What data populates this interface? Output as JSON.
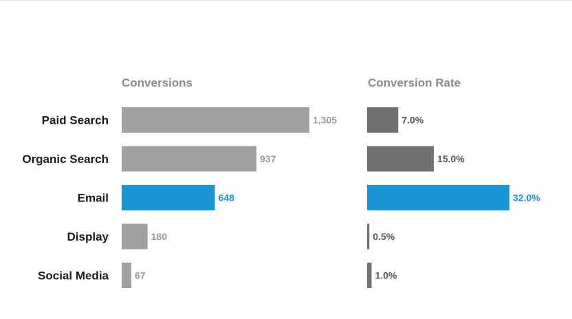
{
  "chart_data": {
    "type": "bar",
    "orientation": "horizontal",
    "categories": [
      "Paid Search",
      "Organic Search",
      "Email",
      "Display",
      "Social Media"
    ],
    "highlight_category": "Email",
    "colors": {
      "conversions_bar": "#a0a0a0",
      "conversions_label": "#9a9a9a",
      "rate_bar": "#727070",
      "rate_label": "#555555",
      "highlight": "#1a96d4"
    },
    "panels": [
      {
        "title": "Conversions",
        "values": [
          1305,
          937,
          648,
          180,
          67
        ],
        "labels": [
          "1,305",
          "937",
          "648",
          "180",
          "67"
        ],
        "xlim": [
          0,
          1305
        ]
      },
      {
        "title": "Conversion Rate",
        "values": [
          7.0,
          15.0,
          32.0,
          0.5,
          1.0
        ],
        "labels": [
          "7.0%",
          "15.0%",
          "32.0%",
          "0.5%",
          "1.0%"
        ],
        "xlim": [
          0,
          32
        ]
      }
    ],
    "grid": false,
    "legend": "none"
  }
}
